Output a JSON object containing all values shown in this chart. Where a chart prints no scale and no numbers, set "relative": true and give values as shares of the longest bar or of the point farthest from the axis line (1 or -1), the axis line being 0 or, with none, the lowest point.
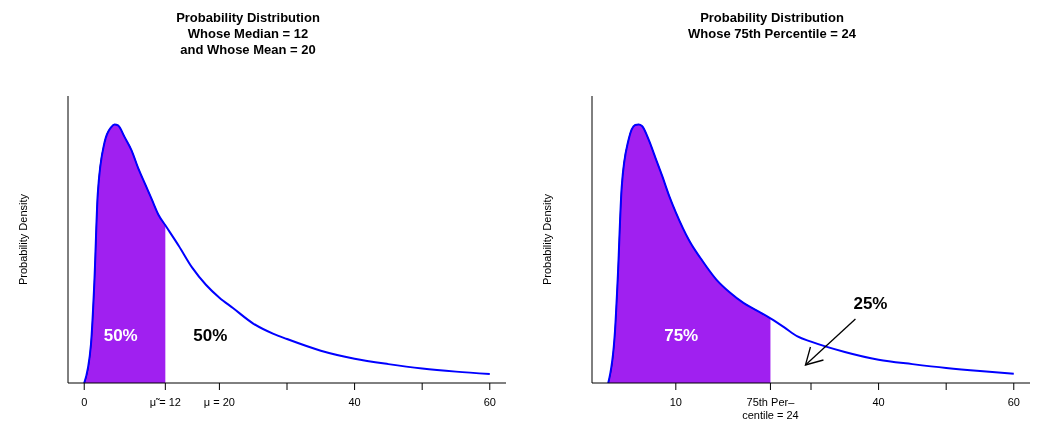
{
  "chart_data": [
    {
      "type": "line",
      "title": "Probability Distribution\nWhose Median = 12\nand Whose Mean = 20",
      "ylabel": "Probability Density",
      "relative": true,
      "xlim": [
        -2.4,
        62.4
      ],
      "xticks": [
        0,
        {
          "value": 12,
          "label": "μ̃ = 12"
        },
        {
          "value": 20,
          "label": "μ = 20"
        },
        {
          "value": 30,
          "label": null
        },
        40,
        {
          "value": 50,
          "label": null
        },
        60
      ],
      "x": [
        0,
        1,
        1.5,
        2,
        3,
        4,
        4.5,
        5,
        6,
        7,
        8,
        9,
        10,
        11,
        12,
        14,
        16,
        18,
        20,
        22,
        25,
        28,
        30,
        35,
        40,
        45,
        50,
        55,
        60
      ],
      "series": [
        {
          "type": "area",
          "color": "#a020f0",
          "values": [
            0,
            0.15,
            0.39,
            0.73,
            0.93,
            0.99,
            1,
            0.996,
            0.95,
            0.9,
            0.83,
            0.77,
            0.71,
            0.65,
            0.61,
            null,
            null,
            null,
            null,
            null,
            null,
            null,
            null,
            null,
            null,
            null,
            null,
            null,
            null
          ]
        },
        {
          "color": "#0000ff",
          "values": [
            0,
            0.15,
            0.39,
            0.73,
            0.93,
            0.99,
            1,
            0.996,
            0.95,
            0.9,
            0.83,
            0.77,
            0.71,
            0.65,
            0.61,
            0.53,
            0.445,
            0.38,
            0.33,
            0.29,
            0.23,
            0.19,
            0.17,
            0.125,
            0.094,
            0.073,
            0.056,
            0.044,
            0.035
          ]
        }
      ],
      "annotations": [
        "50%",
        "50%"
      ]
    },
    {
      "type": "line",
      "title": "Probability Distribution\nWhose 75th Percentile = 24",
      "ylabel": "Probability Density",
      "relative": true,
      "xlim": [
        -2.4,
        62.4
      ],
      "xticks": [
        10,
        {
          "value": 24,
          "label": "75th Per–\ncentile = 24"
        },
        {
          "value": 30,
          "label": null
        },
        40,
        {
          "value": 50,
          "label": null
        },
        60
      ],
      "x": [
        0,
        1,
        1.4,
        2,
        3,
        4,
        4.5,
        5,
        6,
        7,
        8,
        9,
        10,
        12,
        14,
        16,
        18,
        20,
        22,
        24,
        26,
        28,
        30,
        35,
        40,
        45,
        50,
        55,
        60
      ],
      "series": [
        {
          "type": "area",
          "color": "#a020f0",
          "values": [
            0,
            0.2,
            0.4,
            0.76,
            0.94,
            0.998,
            1,
            0.994,
            0.94,
            0.87,
            0.8,
            0.725,
            0.66,
            0.55,
            0.47,
            0.4,
            0.35,
            0.31,
            0.28,
            0.25,
            null,
            null,
            null,
            null,
            null,
            null,
            null,
            null,
            null
          ]
        },
        {
          "color": "#0000ff",
          "values": [
            0,
            0.2,
            0.4,
            0.76,
            0.94,
            0.998,
            1,
            0.994,
            0.94,
            0.87,
            0.8,
            0.725,
            0.66,
            0.55,
            0.47,
            0.4,
            0.35,
            0.31,
            0.28,
            0.25,
            0.216,
            0.18,
            0.16,
            0.12,
            0.09,
            0.073,
            0.058,
            0.046,
            0.036
          ]
        }
      ],
      "annotations": [
        "75%",
        "25%"
      ]
    }
  ]
}
